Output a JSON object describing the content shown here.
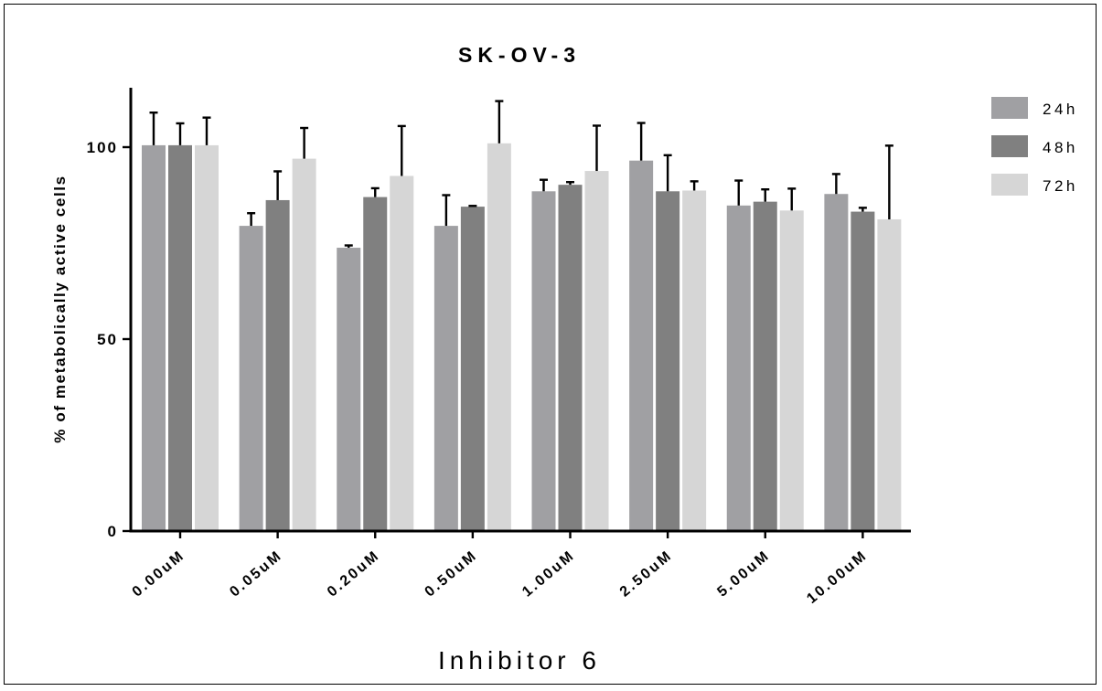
{
  "chart_data": {
    "type": "bar",
    "title": "SK-OV-3",
    "xlabel": "Inhibitor 6",
    "ylabel": "% of metabolically active cells",
    "ylim": [
      0,
      115
    ],
    "yticks": [
      0,
      50,
      100
    ],
    "categories": [
      "0.00uM",
      "0.05uM",
      "0.20uM",
      "0.50uM",
      "1.00uM",
      "2.50uM",
      "5.00uM",
      "10.00uM"
    ],
    "series": [
      {
        "name": "24h",
        "color": "#a0a0a3",
        "values": [
          100.5,
          79.5,
          73.8,
          79.5,
          88.5,
          96.5,
          84.8,
          87.8
        ],
        "errors": [
          8.5,
          3.3,
          0.6,
          8.0,
          3.0,
          9.8,
          6.5,
          5.2
        ]
      },
      {
        "name": "48h",
        "color": "#808080",
        "values": [
          100.5,
          86.2,
          87.0,
          84.5,
          90.2,
          88.5,
          85.8,
          83.2
        ],
        "errors": [
          5.7,
          7.5,
          2.3,
          0.2,
          0.7,
          9.4,
          3.2,
          1.0
        ]
      },
      {
        "name": "72h",
        "color": "#d6d6d6",
        "values": [
          100.5,
          97.0,
          92.5,
          101.0,
          93.8,
          88.7,
          83.5,
          81.2
        ],
        "errors": [
          7.2,
          8.0,
          13.0,
          11.0,
          11.8,
          2.4,
          5.7,
          19.2
        ]
      }
    ],
    "legend_position": "top-right",
    "grid": false,
    "error_bars": true
  }
}
